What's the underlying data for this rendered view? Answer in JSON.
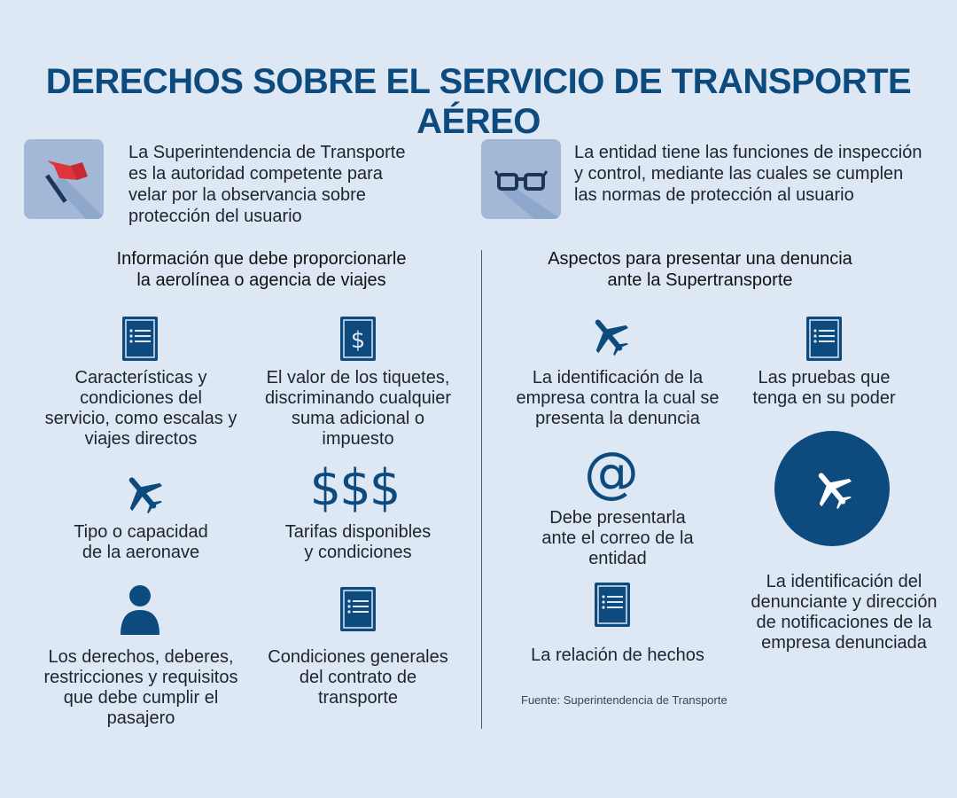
{
  "title": "DERECHOS SOBRE EL SERVICIO DE TRANSPORTE AÉREO",
  "intro": {
    "left": {
      "icon": "flag-icon",
      "lines": [
        "La Superintendencia de Transporte",
        "es la autoridad competente para",
        "velar por la observancia sobre",
        "protección del usuario"
      ]
    },
    "right": {
      "icon": "glasses-icon",
      "lines": [
        "La entidad tiene las funciones de inspección",
        "y control, mediante las cuales se cumplen",
        "las normas de protección al usuario"
      ]
    }
  },
  "left_section": {
    "heading": [
      "Información que debe proporcionarle",
      "la aerolínea o agencia de viajes"
    ],
    "items": [
      {
        "icon": "document-icon",
        "lines": [
          "Características y",
          "condiciones del",
          "servicio, como escalas y",
          "viajes directos"
        ]
      },
      {
        "icon": "dollar-document-icon",
        "lines": [
          "El valor de los tiquetes,",
          "discriminando cualquier",
          "suma adicional o",
          "impuesto"
        ]
      },
      {
        "icon": "airplane-icon",
        "lines": [
          "Tipo o capacidad",
          "de la aeronave"
        ]
      },
      {
        "icon": "dollars-icon",
        "symbol": "$$$",
        "lines": [
          "Tarifas disponibles",
          "y condiciones"
        ]
      },
      {
        "icon": "user-icon",
        "lines": [
          "Los derechos, deberes,",
          "restricciones y requisitos",
          "que debe cumplir el",
          "pasajero"
        ]
      },
      {
        "icon": "document-icon",
        "lines": [
          "Condiciones generales",
          "del contrato de",
          "transporte"
        ]
      }
    ]
  },
  "right_section": {
    "heading": [
      "Aspectos para presentar una denuncia",
      "ante la Supertransporte"
    ],
    "items": [
      {
        "icon": "airplane-icon",
        "lines": [
          "La identificación de la",
          "empresa contra la cual se",
          "presenta la denuncia"
        ]
      },
      {
        "icon": "document-icon",
        "lines": [
          "Las pruebas que",
          "tenga en su poder"
        ]
      },
      {
        "icon": "at-sign-icon",
        "symbol": "@",
        "lines": [
          "Debe presentarla",
          "ante el correo de la",
          "entidad"
        ]
      },
      {
        "icon": "airplane-circle-icon",
        "lines": [
          "La identificación del",
          "denunciante y dirección",
          "de notificaciones de la",
          "empresa denunciada"
        ]
      },
      {
        "icon": "document-icon",
        "lines": [
          "La relación de hechos"
        ]
      }
    ]
  },
  "source": "Fuente: Superintendencia de Transporte",
  "colors": {
    "background": "#dde8f4",
    "primary": "#0d4a7e",
    "icon_tile": "#a3b8d7",
    "flag": "#e0353b"
  }
}
